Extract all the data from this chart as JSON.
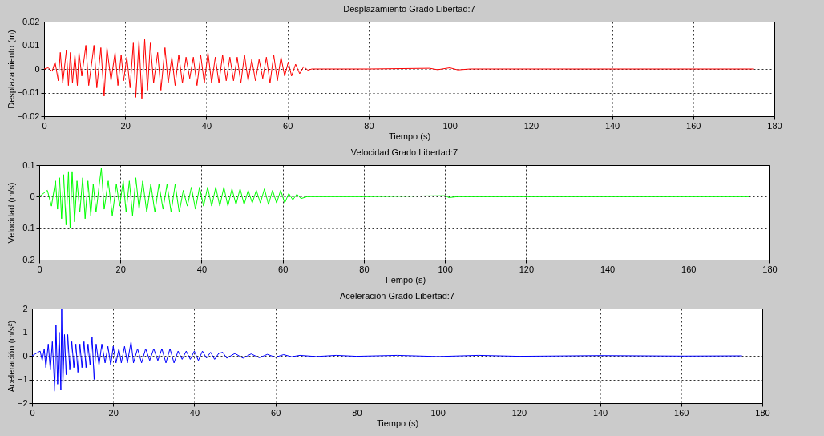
{
  "chart_data": [
    {
      "type": "line",
      "title": "Desplazamiento Grado Libertad:7",
      "xlabel": "Tiempo (s)",
      "ylabel": "Desplazamiento (m)",
      "xlim": [
        0,
        180
      ],
      "xticks": [
        0,
        20,
        40,
        60,
        80,
        100,
        120,
        140,
        160,
        180
      ],
      "ylim": [
        -0.02,
        0.02
      ],
      "yticks": [
        -0.02,
        -0.01,
        0,
        0.01,
        0.02
      ],
      "grid": true,
      "line_style": "solid",
      "x": [
        0,
        1,
        2,
        2.7,
        3.5,
        4,
        4.6,
        5.5,
        6,
        6.5,
        7,
        7.6,
        8.2,
        8.6,
        9.3,
        10.3,
        11,
        12.3,
        13,
        14,
        14.8,
        15.5,
        16.5,
        17.5,
        18.2,
        19,
        19.6,
        20.4,
        21.2,
        22,
        22.6,
        23.4,
        24.1,
        24.8,
        25.5,
        26.2,
        27,
        28,
        28.8,
        29.8,
        30.6,
        31.5,
        32.3,
        33.2,
        34.1,
        35,
        35.9,
        36.8,
        37.7,
        38.6,
        39.5,
        40.4,
        41.3,
        42.2,
        43.1,
        44,
        44.9,
        45.8,
        46.7,
        47.6,
        48.5,
        49.4,
        50.3,
        51.2,
        52.1,
        53,
        53.9,
        54.8,
        55.7,
        56.6,
        57.5,
        58.4,
        59.3,
        60.2,
        61,
        62,
        63,
        64,
        65,
        66,
        80,
        95,
        97,
        100,
        102,
        105,
        140,
        175
      ],
      "series": [
        {
          "color": "#ff0000",
          "values": [
            0,
            0.0005,
            -0.001,
            0.003,
            -0.005,
            0.007,
            -0.006,
            0.008,
            -0.007,
            0.007,
            -0.006,
            0.006,
            -0.007,
            0.007,
            -0.003,
            0.01,
            -0.007,
            0.01,
            -0.008,
            0.009,
            -0.0115,
            0.009,
            -0.005,
            0.007,
            -0.007,
            0.006,
            -0.005,
            0.005,
            -0.008,
            0.011,
            -0.012,
            0.012,
            -0.0125,
            0.0125,
            -0.009,
            0.011,
            -0.006,
            0.007,
            -0.009,
            0.009,
            -0.006,
            0.005,
            -0.007,
            0.006,
            -0.006,
            0.005,
            -0.004,
            0.005,
            -0.007,
            0.006,
            -0.006,
            0.007,
            -0.006,
            0.005,
            -0.006,
            0.006,
            -0.005,
            0.005,
            -0.005,
            0.005,
            -0.006,
            0.006,
            -0.005,
            0.004,
            -0.005,
            0.004,
            -0.004,
            0.005,
            -0.006,
            0.006,
            -0.005,
            0.005,
            -0.003,
            0.003,
            -0.003,
            0.002,
            -0.002,
            0.001,
            -0.0005,
            0,
            0,
            0.0003,
            -0.0003,
            0.0005,
            -0.0004,
            0,
            0,
            0
          ]
        }
      ]
    },
    {
      "type": "line",
      "title": "Velocidad Grado Libertad:7",
      "xlabel": "Tiempo (s)",
      "ylabel": "Velocidad (m/s)",
      "xlim": [
        0,
        180
      ],
      "xticks": [
        0,
        20,
        40,
        60,
        80,
        100,
        120,
        140,
        160,
        180
      ],
      "ylim": [
        -0.2,
        0.1
      ],
      "yticks": [
        -0.2,
        -0.1,
        0,
        0.1
      ],
      "grid": true,
      "line_style": "solid",
      "x": [
        0,
        2,
        3,
        4,
        4.5,
        5,
        5.5,
        6,
        6.6,
        7.2,
        7.6,
        8.1,
        8.7,
        9.3,
        10,
        10.7,
        11.3,
        12,
        12.7,
        13.3,
        14,
        14.8,
        15.3,
        16,
        17,
        18,
        19,
        19.8,
        20.7,
        21.4,
        22.2,
        23,
        23.8,
        24.6,
        25.5,
        26.5,
        27.5,
        28.5,
        29.5,
        30.5,
        31.5,
        32.5,
        33.5,
        34.5,
        35.5,
        36.5,
        37.5,
        38.5,
        39.5,
        40.5,
        41.5,
        42.5,
        43.5,
        44.5,
        45.5,
        46.5,
        47.5,
        48.5,
        49.5,
        50.5,
        51.5,
        52.5,
        53.5,
        54.5,
        55.5,
        56.5,
        57.5,
        58.5,
        59.5,
        60.5,
        61.5,
        62.5,
        63.5,
        64.5,
        66,
        80,
        100,
        101,
        103,
        175
      ],
      "series": [
        {
          "color": "#00ff00",
          "values": [
            0,
            0.02,
            -0.03,
            0.05,
            -0.04,
            0.06,
            -0.07,
            0.07,
            -0.09,
            0.08,
            -0.1,
            0.08,
            -0.08,
            0.05,
            -0.05,
            0.06,
            -0.07,
            0.05,
            -0.06,
            0.04,
            -0.05,
            0.04,
            0.09,
            -0.04,
            0.05,
            -0.06,
            0.04,
            -0.03,
            0.05,
            -0.05,
            0.05,
            -0.06,
            0.06,
            -0.04,
            0.05,
            -0.05,
            0.04,
            -0.05,
            0.04,
            -0.04,
            0.04,
            -0.05,
            0.04,
            -0.05,
            0.02,
            -0.03,
            0.03,
            -0.04,
            0.03,
            -0.03,
            0.03,
            -0.03,
            0.03,
            -0.03,
            0.03,
            -0.03,
            0.025,
            -0.025,
            0.025,
            -0.025,
            0.02,
            -0.02,
            0.02,
            -0.02,
            0.025,
            -0.025,
            0.02,
            -0.02,
            0.02,
            -0.02,
            0.01,
            -0.01,
            0.008,
            -0.006,
            0,
            0,
            0.003,
            -0.003,
            0,
            0
          ]
        }
      ]
    },
    {
      "type": "line",
      "title": "Aceleración Grado Libertad:7",
      "xlabel": "Tiempo (s)",
      "ylabel": "Aceleración (m/s²)",
      "xlim": [
        0,
        180
      ],
      "xticks": [
        0,
        20,
        40,
        60,
        80,
        100,
        120,
        140,
        160,
        180
      ],
      "ylim": [
        -2,
        2
      ],
      "yticks": [
        -2,
        -1,
        0,
        1,
        2
      ],
      "grid": true,
      "line_style": "solid",
      "x": [
        0,
        2,
        2.5,
        3,
        3.4,
        4,
        4.5,
        5,
        5.6,
        5.9,
        6.3,
        6.7,
        7.1,
        7.3,
        7.6,
        8,
        8.4,
        8.8,
        9.3,
        9.8,
        10.3,
        10.8,
        11.3,
        11.8,
        12.3,
        12.8,
        13.3,
        13.8,
        14.3,
        14.8,
        15.3,
        15.8,
        16.5,
        17.2,
        18,
        18.7,
        19.4,
        20,
        20.7,
        21.4,
        22,
        22.8,
        23.5,
        24.4,
        25,
        26,
        27,
        28,
        29,
        30,
        31,
        32,
        33,
        34,
        35,
        36,
        37,
        38,
        39,
        40,
        41,
        42,
        43,
        44,
        45,
        46,
        47,
        48,
        50,
        52,
        54,
        56,
        58,
        60,
        62,
        64,
        66,
        70,
        75,
        80,
        90,
        100,
        110,
        120,
        140,
        160,
        175
      ],
      "series": [
        {
          "color": "#0000ff",
          "values": [
            0,
            0.2,
            -0.2,
            0.3,
            -0.5,
            0.5,
            -0.6,
            0.6,
            -1.5,
            1.3,
            -1.2,
            1,
            -1.45,
            2,
            -1.2,
            0.9,
            -0.8,
            0.9,
            -0.6,
            0.6,
            -0.5,
            0.5,
            -0.7,
            0.5,
            -0.5,
            0.6,
            -0.5,
            0.5,
            -0.4,
            0.8,
            -1,
            0.5,
            -0.4,
            0.5,
            -0.3,
            0.4,
            -0.4,
            0.4,
            -0.3,
            0.3,
            -0.3,
            0.4,
            -0.3,
            0.6,
            -0.3,
            0.3,
            -0.3,
            0.3,
            -0.2,
            0.3,
            -0.2,
            0.3,
            -0.3,
            0.3,
            -0.3,
            0.2,
            -0.15,
            0.2,
            -0.15,
            0.2,
            -0.2,
            0.2,
            -0.1,
            0.15,
            -0.15,
            0.1,
            0.15,
            -0.1,
            0.1,
            -0.1,
            0.08,
            -0.08,
            0.06,
            -0.06,
            0.05,
            -0.04,
            0.02,
            -0.03,
            0.02,
            -0.02,
            0.02,
            -0.03,
            0.02,
            -0.02,
            0.01,
            -0.01,
            0
          ]
        }
      ]
    }
  ]
}
